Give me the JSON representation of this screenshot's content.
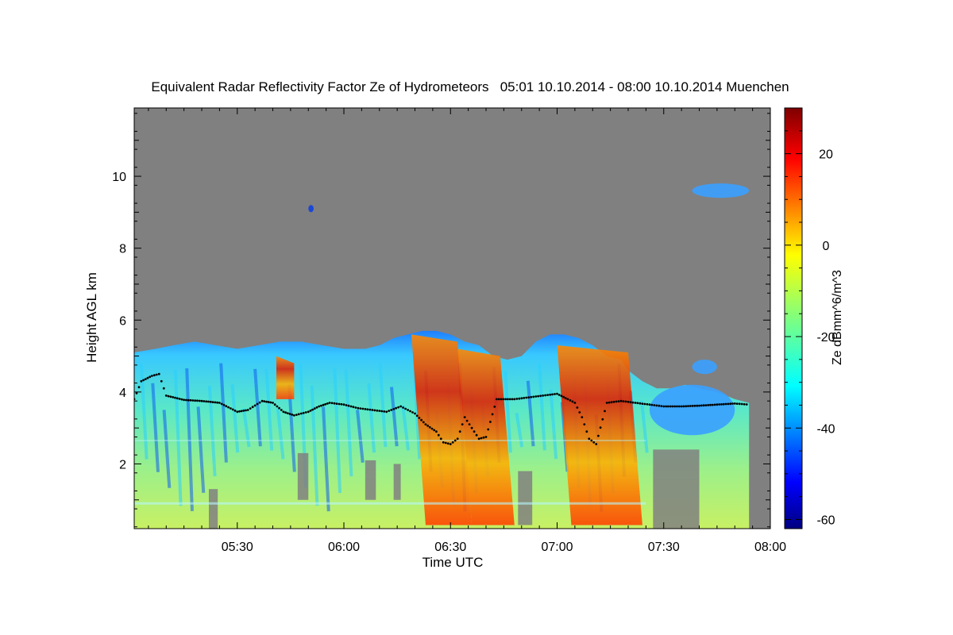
{
  "chart_data": {
    "type": "heatmap",
    "title": "Equivalent Radar Reflectivity Factor Ze of Hydrometeors   05:01 10.10.2014 - 08:00 10.10.2014 Muenchen",
    "xlabel": "Time UTC",
    "ylabel": "Height AGL km",
    "colorbar_label": "Ze dBmm^6/m^3",
    "x_unit": "minutes_of_day",
    "xlim": [
      301,
      480
    ],
    "ylim": [
      0.2,
      11.9
    ],
    "x_ticks": [
      {
        "value": 330,
        "label": "05:30"
      },
      {
        "value": 360,
        "label": "06:00"
      },
      {
        "value": 390,
        "label": "06:30"
      },
      {
        "value": 420,
        "label": "07:00"
      },
      {
        "value": 450,
        "label": "07:30"
      },
      {
        "value": 480,
        "label": "08:00"
      }
    ],
    "y_ticks": [
      {
        "value": 2,
        "label": "2"
      },
      {
        "value": 4,
        "label": "4"
      },
      {
        "value": 6,
        "label": "6"
      },
      {
        "value": 8,
        "label": "8"
      },
      {
        "value": 10,
        "label": "10"
      }
    ],
    "colorbar_range": [
      -62,
      30
    ],
    "colorbar_ticks": [
      {
        "value": 20,
        "label": "20"
      },
      {
        "value": 0,
        "label": "0"
      },
      {
        "value": -20,
        "label": "-20"
      },
      {
        "value": -40,
        "label": "-40"
      },
      {
        "value": -60,
        "label": "-60"
      }
    ],
    "background_color": "#808080",
    "cloud_top_profile": [
      [
        301,
        5.1
      ],
      [
        307,
        5.2
      ],
      [
        312,
        5.3
      ],
      [
        318,
        5.4
      ],
      [
        324,
        5.3
      ],
      [
        330,
        5.2
      ],
      [
        336,
        5.3
      ],
      [
        342,
        5.4
      ],
      [
        348,
        5.4
      ],
      [
        354,
        5.3
      ],
      [
        360,
        5.2
      ],
      [
        366,
        5.2
      ],
      [
        370,
        5.3
      ],
      [
        374,
        5.5
      ],
      [
        378,
        5.6
      ],
      [
        382,
        5.7
      ],
      [
        386,
        5.7
      ],
      [
        390,
        5.6
      ],
      [
        394,
        5.4
      ],
      [
        398,
        5.3
      ],
      [
        402,
        5.0
      ],
      [
        406,
        4.9
      ],
      [
        410,
        5.0
      ],
      [
        414,
        5.4
      ],
      [
        418,
        5.6
      ],
      [
        422,
        5.6
      ],
      [
        426,
        5.5
      ],
      [
        430,
        5.3
      ],
      [
        434,
        5.0
      ],
      [
        438,
        4.9
      ],
      [
        440,
        4.6
      ],
      [
        444,
        4.3
      ],
      [
        448,
        4.1
      ],
      [
        452,
        4.1
      ],
      [
        456,
        4.2
      ],
      [
        460,
        4.1
      ],
      [
        465,
        4.0
      ],
      [
        470,
        3.8
      ],
      [
        474,
        3.7
      ]
    ],
    "melting_layer": [
      [
        301,
        3.8
      ],
      [
        303,
        4.3
      ],
      [
        306,
        4.45
      ],
      [
        308,
        4.5
      ],
      [
        310,
        3.9
      ],
      [
        315,
        3.78
      ],
      [
        320,
        3.75
      ],
      [
        325,
        3.7
      ],
      [
        330,
        3.45
      ],
      [
        333,
        3.5
      ],
      [
        337,
        3.75
      ],
      [
        340,
        3.7
      ],
      [
        343,
        3.45
      ],
      [
        346,
        3.35
      ],
      [
        350,
        3.45
      ],
      [
        353,
        3.6
      ],
      [
        356,
        3.7
      ],
      [
        360,
        3.65
      ],
      [
        364,
        3.55
      ],
      [
        368,
        3.5
      ],
      [
        372,
        3.45
      ],
      [
        376,
        3.6
      ],
      [
        380,
        3.4
      ],
      [
        383,
        3.1
      ],
      [
        386,
        2.9
      ],
      [
        388,
        2.6
      ],
      [
        390,
        2.55
      ],
      [
        392,
        2.7
      ],
      [
        394,
        3.3
      ],
      [
        396,
        3.0
      ],
      [
        398,
        2.7
      ],
      [
        400,
        2.75
      ],
      [
        403,
        3.8
      ],
      [
        408,
        3.8
      ],
      [
        412,
        3.85
      ],
      [
        416,
        3.9
      ],
      [
        420,
        3.95
      ],
      [
        423,
        3.8
      ],
      [
        425,
        3.7
      ],
      [
        427,
        3.3
      ],
      [
        429,
        2.7
      ],
      [
        431,
        2.55
      ],
      [
        434,
        3.7
      ],
      [
        438,
        3.75
      ],
      [
        442,
        3.7
      ],
      [
        446,
        3.65
      ],
      [
        450,
        3.6
      ],
      [
        455,
        3.6
      ],
      [
        460,
        3.62
      ],
      [
        465,
        3.65
      ],
      [
        470,
        3.68
      ],
      [
        474,
        3.65
      ]
    ],
    "features": [
      {
        "name": "stratiform-layer",
        "x_range": [
          301,
          445
        ],
        "y_range": [
          0.2,
          5.7
        ],
        "ze": -28
      },
      {
        "name": "shaft-1",
        "x_range": [
          341,
          346
        ],
        "y_range": [
          3.8,
          5.0
        ],
        "ze": 8
      },
      {
        "name": "shaft-2",
        "x_range": [
          379,
          392
        ],
        "y_range": [
          0.3,
          5.6
        ],
        "ze": 12
      },
      {
        "name": "shaft-3",
        "x_range": [
          392,
          404
        ],
        "y_range": [
          0.3,
          5.2
        ],
        "ze": 10
      },
      {
        "name": "shaft-4",
        "x_range": [
          420,
          440
        ],
        "y_range": [
          0.3,
          5.3
        ],
        "ze": 14
      },
      {
        "name": "upper-patch-1",
        "x_range": [
          350,
          351.5
        ],
        "y_range": [
          9.0,
          9.2
        ],
        "ze": -50
      },
      {
        "name": "upper-patch-2",
        "x_range": [
          458,
          474
        ],
        "y_range": [
          9.4,
          9.8
        ],
        "ze": -38
      },
      {
        "name": "mid-patch",
        "x_range": [
          458,
          465
        ],
        "y_range": [
          4.5,
          4.9
        ],
        "ze": -38
      },
      {
        "name": "trailing-layer",
        "x_range": [
          446,
          470
        ],
        "y_range": [
          2.8,
          4.2
        ],
        "ze": -40
      }
    ]
  }
}
